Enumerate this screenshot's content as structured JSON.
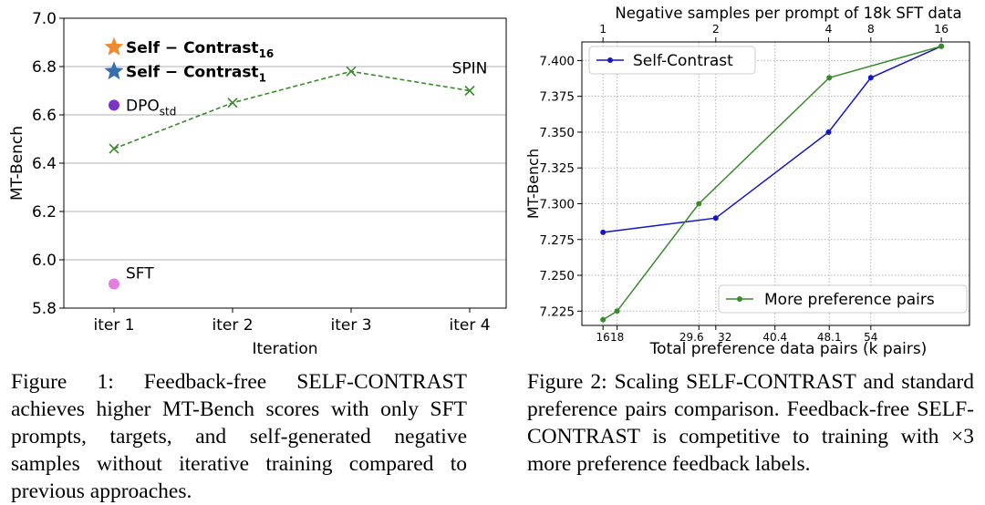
{
  "chart_data": [
    {
      "type": "scatter",
      "xlabel": "Iteration",
      "ylabel": "MT-Bench",
      "categories": [
        "iter 1",
        "iter 2",
        "iter 3",
        "iter 4"
      ],
      "ylim": [
        5.8,
        7.0
      ],
      "yticks": [
        "5.8",
        "6.0",
        "6.2",
        "6.4",
        "6.6",
        "6.8",
        "7.0"
      ],
      "grid": "horizontal",
      "series": [
        {
          "name": "SPIN",
          "style": "dashed-line-x",
          "color": "#3a8a2c",
          "x": [
            "iter 1",
            "iter 2",
            "iter 3",
            "iter 4"
          ],
          "values": [
            6.46,
            6.65,
            6.78,
            6.7
          ]
        }
      ],
      "points": [
        {
          "label": "Self − Contrast",
          "sub": "16",
          "x": "iter 1",
          "y": 6.88,
          "marker": "star",
          "color": "#f08a30"
        },
        {
          "label": "Self − Contrast",
          "sub": "1",
          "x": "iter 1",
          "y": 6.78,
          "marker": "star",
          "color": "#3470b0"
        },
        {
          "label": "DPO",
          "sub": "std",
          "x": "iter 1",
          "y": 6.64,
          "marker": "circle",
          "color": "#7b32c8"
        },
        {
          "label": "SFT",
          "x": "iter 1",
          "y": 5.9,
          "marker": "circle",
          "color": "#e07fe0"
        }
      ],
      "spin_label": "SPIN"
    },
    {
      "type": "line",
      "title": "Negative samples per prompt of 18k SFT data",
      "xlabel": "Total preference data pairs (k pairs)",
      "ylabel": "MT-Bench",
      "xlim": [
        13,
        68
      ],
      "ylim": [
        7.215,
        7.413
      ],
      "yticks": [
        "7.225",
        "7.250",
        "7.275",
        "7.300",
        "7.325",
        "7.350",
        "7.375",
        "7.400"
      ],
      "xticks_bottom": [
        "16",
        "18",
        "29.6",
        "32",
        "40.4",
        "48.1",
        "54"
      ],
      "xticks_top": [
        "1",
        "2",
        "4",
        "8",
        "16"
      ],
      "grid": "dotted",
      "legend_placement": "top-left / bottom-right",
      "series": [
        {
          "name": "Self-Contrast",
          "color": "#1515c8",
          "x": [
            16,
            32,
            48,
            54,
            64
          ],
          "values": [
            7.28,
            7.29,
            7.35,
            7.388,
            7.41
          ]
        },
        {
          "name": "More preference pairs",
          "color": "#3a8a2c",
          "x": [
            16,
            18,
            29.6,
            48.1,
            64
          ],
          "values": [
            7.219,
            7.225,
            7.3,
            7.388,
            7.41
          ]
        }
      ],
      "legend_bottom": "More preference pairs",
      "legend_top": "Self-Contrast"
    }
  ],
  "captions": {
    "fig1": "Figure 1: Feedback-free SELF-CONTRAST achieves higher MT-Bench scores with only SFT prompts, targets, and self-generated negative samples without iterative training compared to previous approaches.",
    "fig2": "Figure 2: Scaling SELF-CONTRAST and standard preference pairs comparison. Feedback-free SELF-CONTRAST is competitive to training with ×3 more preference feedback labels."
  }
}
